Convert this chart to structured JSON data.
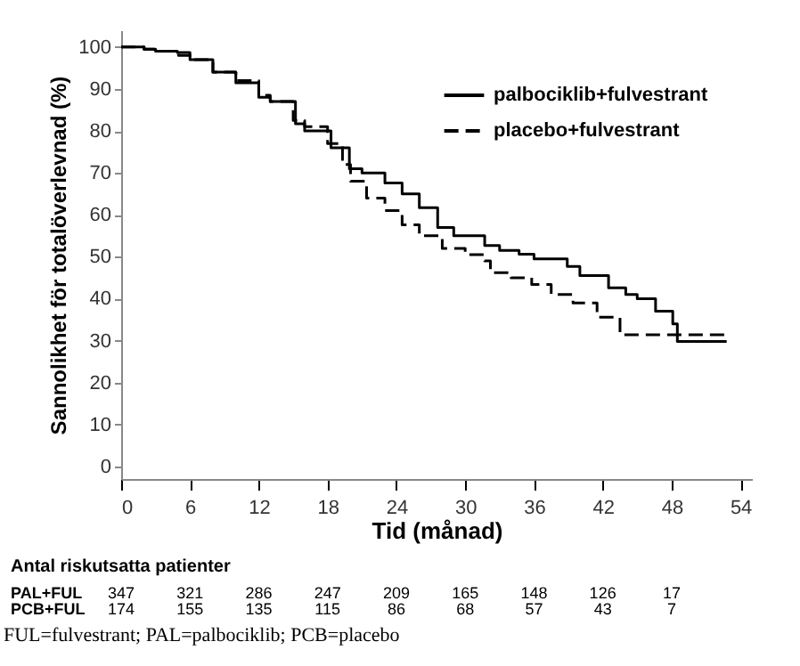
{
  "chart_data": {
    "type": "step",
    "xlabel": "Tid (månad)",
    "ylabel": "Sannolikhet för totalöverlevnad (%)",
    "xlim": [
      0,
      55
    ],
    "xticks": [
      0,
      6,
      12,
      18,
      24,
      30,
      36,
      42,
      48,
      54
    ],
    "ylim": [
      -3,
      104
    ],
    "yticks": [
      0,
      10,
      20,
      30,
      40,
      50,
      60,
      70,
      80,
      90,
      100
    ],
    "grid": false,
    "legend": "top right",
    "marker": "none",
    "series": [
      {
        "name": "palbociklib+fulvestrant",
        "color": "#000000",
        "line_style": "solid",
        "x": [
          0,
          2,
          3,
          4.9,
          6,
          8,
          10,
          12,
          13,
          15.2,
          16,
          18.3,
          19.9,
          21,
          23,
          24.5,
          26,
          27.6,
          29,
          31.7,
          33,
          34.7,
          36,
          38.9,
          40,
          42.5,
          44,
          45,
          46.6,
          48.1,
          48.5,
          52.8
        ],
        "values": [
          100,
          99.5,
          99,
          98.7,
          97,
          94,
          91.5,
          88,
          87,
          81.7,
          80,
          76,
          71,
          70,
          67.6,
          65,
          61.7,
          57,
          55,
          52.7,
          51.5,
          50.6,
          49.5,
          47.7,
          45.5,
          42.6,
          41,
          40,
          37,
          34,
          29.8,
          29.8
        ]
      },
      {
        "name": "placebo+fulvestrant",
        "color": "#000000",
        "line_style": "dashed",
        "x": [
          0,
          2,
          3,
          5,
          6,
          8,
          10,
          12,
          13,
          15,
          16,
          18,
          19.3,
          20,
          21.4,
          23,
          24.5,
          26,
          28,
          30,
          31.7,
          32.2,
          34,
          35.8,
          37.5,
          39.4,
          41.5,
          43.5,
          52.8
        ],
        "values": [
          100,
          99.5,
          99,
          98,
          97,
          94,
          92,
          88.5,
          87,
          82.5,
          81,
          77,
          72,
          68,
          64,
          61,
          57.6,
          55,
          52,
          50.5,
          49,
          46.2,
          45,
          43.4,
          41,
          39,
          35.6,
          31.4,
          31.4
        ]
      }
    ],
    "annotations": [
      "Antal riskutsatta patienter",
      "PAL+FUL 347 321 286 247 209 165 148 126 17",
      "PCB+FUL 174 155 135 115 86 68 57 43 7",
      "FUL=fulvestrant; PAL=palbociklib; PCB=placebo"
    ]
  }
}
